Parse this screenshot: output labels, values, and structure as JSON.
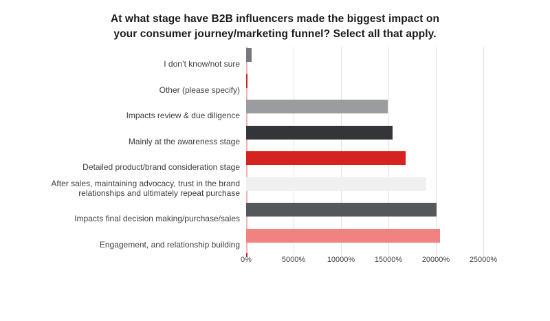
{
  "title": {
    "line1": "At what stage have B2B influencers made the biggest impact on",
    "line2": "your consumer journey/marketing funnel? Select all that apply."
  },
  "chart_data": {
    "type": "bar",
    "orientation": "horizontal",
    "title": "At what stage have B2B influencers made the biggest impact on your consumer journey/marketing funnel? Select all that apply.",
    "xlabel": "",
    "ylabel": "",
    "unit": "%",
    "xlim": [
      0,
      25000
    ],
    "x_ticks": [
      "0%",
      "5000%",
      "10000%",
      "15000%",
      "20000%",
      "25000%"
    ],
    "grid": "vertical",
    "legend": "none",
    "categories": [
      "I don’t know/not sure",
      "Other (please specify)",
      "Impacts review & due diligence",
      "Mainly at the awareness stage",
      "Detailed product/brand consideration stage",
      "After sales, maintaining advocacy, trust in the brand relationships and ultimately repeat purchase",
      "Impacts final decision making/purchase/sales",
      "Engagement, and relationship building"
    ],
    "values": [
      600,
      150,
      14900,
      15400,
      16800,
      19000,
      20100,
      20400
    ],
    "bar_colors": [
      "#77787b",
      "#d7231f",
      "#9b9c9f",
      "#343539",
      "#d7231f",
      "#f0f0f1",
      "#54575b",
      "#f0837f"
    ],
    "gridline_color": "#e0e0e0",
    "zero_axis_color": "#f0b3b1",
    "zero_tick_color": "#ce2b27"
  }
}
